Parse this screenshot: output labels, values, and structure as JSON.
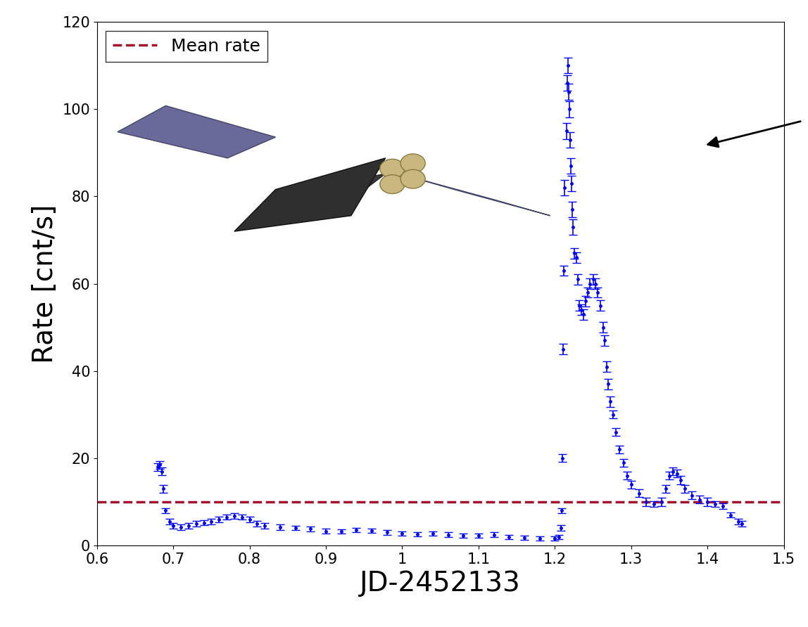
{
  "chart_data": {
    "type": "scatter",
    "x_label": "JD-2452133",
    "y_label": "Rate [cnt/s]",
    "x": [
      0.68,
      0.682,
      0.685,
      0.687,
      0.69,
      0.695,
      0.7,
      0.71,
      0.72,
      0.73,
      0.74,
      0.75,
      0.76,
      0.77,
      0.78,
      0.79,
      0.8,
      0.81,
      0.82,
      0.84,
      0.86,
      0.88,
      0.9,
      0.92,
      0.94,
      0.96,
      0.98,
      1.0,
      1.02,
      1.04,
      1.06,
      1.08,
      1.1,
      1.12,
      1.14,
      1.16,
      1.18,
      1.2,
      1.205,
      1.208,
      1.209,
      1.21,
      1.211,
      1.212,
      1.213,
      1.215,
      1.216,
      1.217,
      1.218,
      1.219,
      1.22,
      1.221,
      1.222,
      1.223,
      1.224,
      1.226,
      1.228,
      1.23,
      1.232,
      1.235,
      1.238,
      1.24,
      1.243,
      1.246,
      1.25,
      1.253,
      1.256,
      1.26,
      1.263,
      1.265,
      1.268,
      1.27,
      1.273,
      1.276,
      1.28,
      1.285,
      1.29,
      1.295,
      1.3,
      1.31,
      1.32,
      1.33,
      1.34,
      1.345,
      1.35,
      1.355,
      1.36,
      1.365,
      1.37,
      1.38,
      1.39,
      1.4,
      1.41,
      1.42,
      1.43,
      1.44,
      1.445
    ],
    "values": [
      18,
      18.5,
      17,
      13,
      8,
      5.5,
      4.5,
      4.2,
      4.5,
      5,
      5.2,
      5.5,
      6,
      6.5,
      6.8,
      6.5,
      6,
      5,
      4.5,
      4.2,
      4,
      3.8,
      3.3,
      3.2,
      3.6,
      3.4,
      3,
      2.8,
      2.6,
      2.8,
      2.5,
      2.2,
      2.3,
      2.5,
      2,
      1.8,
      1.6,
      1.6,
      2,
      4,
      8,
      20,
      45,
      63,
      82,
      95,
      106,
      110,
      104,
      100,
      93,
      87,
      83,
      77,
      73,
      67,
      66,
      61,
      55,
      54,
      53,
      56,
      58,
      60,
      61,
      60,
      58,
      55,
      50,
      47,
      41,
      37,
      33,
      30,
      26,
      22,
      19,
      16,
      14,
      12,
      10,
      9.5,
      10,
      13,
      16,
      17,
      16.5,
      15,
      13,
      11.5,
      10.5,
      10,
      9.5,
      9,
      7,
      5.5,
      5
    ],
    "errors": [
      0.9,
      0.9,
      0.9,
      0.9,
      0.6,
      0.6,
      0.6,
      0.6,
      0.6,
      0.6,
      0.6,
      0.6,
      0.6,
      0.6,
      0.6,
      0.6,
      0.6,
      0.6,
      0.6,
      0.6,
      0.5,
      0.5,
      0.5,
      0.5,
      0.5,
      0.5,
      0.5,
      0.5,
      0.5,
      0.5,
      0.5,
      0.5,
      0.5,
      0.5,
      0.5,
      0.5,
      0.5,
      0.5,
      0.5,
      0.6,
      0.6,
      0.9,
      1.2,
      1.2,
      1.8,
      1.8,
      1.8,
      1.8,
      1.8,
      1.8,
      1.8,
      1.8,
      1.8,
      1.8,
      1.8,
      1.2,
      1.2,
      1.2,
      1.2,
      1.2,
      1.2,
      1.2,
      1.2,
      1.2,
      1.2,
      1.2,
      1.2,
      1.2,
      1.2,
      1.2,
      1.2,
      1.2,
      1.2,
      0.9,
      0.9,
      0.9,
      0.9,
      0.9,
      0.9,
      0.9,
      0.9,
      0.6,
      0.9,
      0.9,
      0.9,
      0.9,
      0.9,
      0.9,
      0.9,
      0.9,
      0.9,
      0.9,
      0.6,
      0.6,
      0.6,
      0.6,
      0.6
    ],
    "color": "#0000ff",
    "marker": "point",
    "mean_rate": {
      "name": "Mean rate",
      "value": 10,
      "color": "#a2142f",
      "line_style": "dashed"
    },
    "legend": "upper left",
    "xlim": [
      0.6,
      1.5
    ],
    "xticks": [
      0.6,
      0.7,
      0.8,
      0.9,
      1,
      1.1,
      1.2,
      1.3,
      1.4,
      1.5
    ],
    "ylim": [
      0,
      120
    ],
    "yticks": [
      0,
      20,
      40,
      60,
      80,
      100,
      120
    ],
    "grid": false
  }
}
